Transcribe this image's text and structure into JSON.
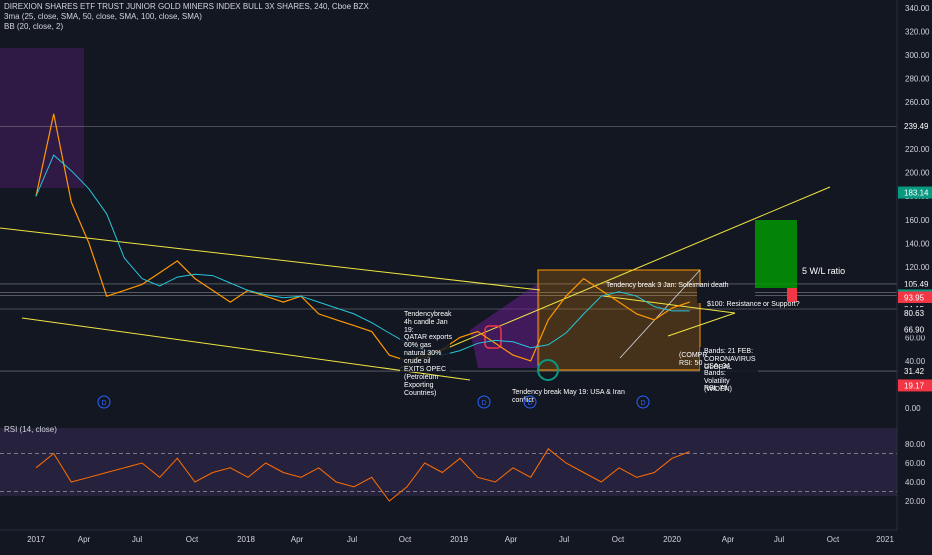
{
  "header": {
    "title": "DIREXION SHARES ETF TRUST JUNIOR GOLD MINERS INDEX BULL 3X SHARES, 240, Cboe BZX",
    "ma_label": "3ma (25, close, SMA, 50, close, SMA, 100, close, SMA)",
    "bb_label": "BB (20, close, 2)",
    "rsi_label": "RSI (14, close)"
  },
  "colors": {
    "background": "#131722",
    "price": "#ff9800",
    "trendline": "#f0e442",
    "rsi": "#ff6d00",
    "accent_red": "#f23645",
    "accent_green": "#089981",
    "projection_green": "#00a000"
  },
  "chart_data": [
    {
      "type": "line",
      "name": "price",
      "x_ticks": [
        "2017",
        "Apr",
        "Jul",
        "Oct",
        "2018",
        "Apr",
        "Jul",
        "Oct",
        "2019",
        "Apr",
        "Jul",
        "Oct",
        "2020",
        "Apr",
        "Jul",
        "Oct",
        "2021"
      ],
      "y_ticks": [
        0,
        20,
        40,
        60,
        80,
        100,
        120,
        140,
        160,
        180,
        200,
        220,
        240,
        260,
        280,
        300,
        320,
        340
      ],
      "ylim": [
        0,
        340
      ],
      "series": [
        {
          "name": "close",
          "x": [
            "2017-01",
            "2017-02",
            "2017-03",
            "2017-04",
            "2017-05",
            "2017-06",
            "2017-07",
            "2017-08",
            "2017-09",
            "2017-10",
            "2017-11",
            "2017-12",
            "2018-01",
            "2018-02",
            "2018-03",
            "2018-04",
            "2018-05",
            "2018-06",
            "2018-07",
            "2018-08",
            "2018-09",
            "2018-10",
            "2018-11",
            "2018-12",
            "2019-01",
            "2019-02",
            "2019-03",
            "2019-04",
            "2019-05",
            "2019-06",
            "2019-07",
            "2019-08",
            "2019-09",
            "2019-10",
            "2019-11",
            "2019-12",
            "2020-01",
            "2020-02"
          ],
          "y": [
            180,
            250,
            175,
            140,
            95,
            100,
            105,
            115,
            125,
            110,
            100,
            90,
            100,
            95,
            90,
            95,
            80,
            75,
            70,
            65,
            45,
            40,
            45,
            50,
            60,
            65,
            55,
            45,
            40,
            75,
            95,
            110,
            100,
            90,
            80,
            75,
            85,
            90
          ]
        }
      ],
      "price_labels": [
        "239.49",
        "183.14",
        "105.49",
        "98.00",
        "95.68",
        "93.95",
        "84.15",
        "80.63",
        "66.90",
        "31.42",
        "19.17"
      ],
      "annotations": [
        "Tendencybreak 4h candle Jan 19:",
        "QATAR exports 60% gas natural 30% crude oil EXITS OPEC (Petroleum Exporting Countries)",
        "Tendency break May 19: USA & Iran conflict",
        "Tendency break 3 Jan: Soleimani death",
        "$100: Resistance or Support?",
        "5 W/L ratio",
        "Bands: 21 FEB: CORONAVIRUS GLOBAL",
        "USA: 34",
        "Bands: Volatility (WIDEN)",
        "RSI: 70",
        "(COMPR",
        "RSI: 50"
      ],
      "event_marker": "D"
    },
    {
      "type": "line",
      "name": "rsi",
      "y_ticks": [
        20,
        40,
        60,
        80
      ],
      "ylim": [
        0,
        100
      ],
      "levels": [
        70,
        30
      ],
      "series": [
        {
          "name": "RSI",
          "x": [
            "2017-01",
            "2017-02",
            "2017-03",
            "2017-04",
            "2017-05",
            "2017-06",
            "2017-07",
            "2017-08",
            "2017-09",
            "2017-10",
            "2017-11",
            "2017-12",
            "2018-01",
            "2018-02",
            "2018-03",
            "2018-04",
            "2018-05",
            "2018-06",
            "2018-07",
            "2018-08",
            "2018-09",
            "2018-10",
            "2018-11",
            "2018-12",
            "2019-01",
            "2019-02",
            "2019-03",
            "2019-04",
            "2019-05",
            "2019-06",
            "2019-07",
            "2019-08",
            "2019-09",
            "2019-10",
            "2019-11",
            "2019-12",
            "2020-01",
            "2020-02"
          ],
          "y": [
            55,
            70,
            40,
            45,
            50,
            55,
            60,
            45,
            65,
            40,
            50,
            55,
            45,
            60,
            50,
            45,
            55,
            40,
            35,
            45,
            20,
            35,
            60,
            50,
            65,
            45,
            40,
            55,
            45,
            75,
            60,
            50,
            40,
            55,
            45,
            50,
            65,
            72
          ]
        }
      ]
    }
  ]
}
